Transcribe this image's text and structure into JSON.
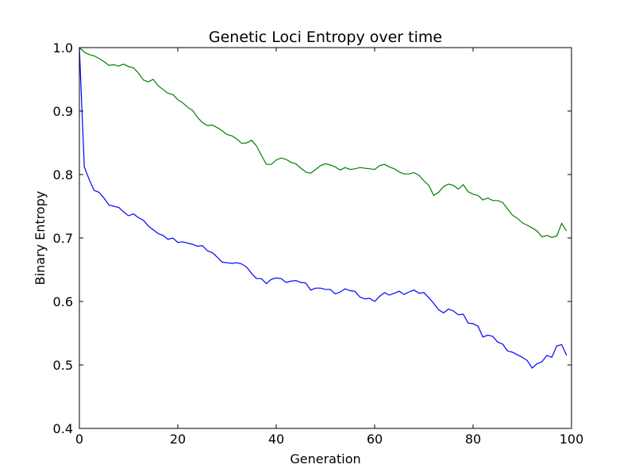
{
  "chart_data": {
    "type": "line",
    "title": "Genetic Loci Entropy over time",
    "xlabel": "Generation",
    "ylabel": "Binary Entropy",
    "xlim": [
      0,
      100
    ],
    "ylim": [
      0.4,
      1.0
    ],
    "xticks": [
      "0",
      "20",
      "40",
      "60",
      "80",
      "100"
    ],
    "yticks": [
      "0.4",
      "0.5",
      "0.6",
      "0.7",
      "0.8",
      "0.9",
      "1.0"
    ],
    "grid": false,
    "legend": "none",
    "series": [
      {
        "color": "#008000",
        "x": [
          0,
          1,
          2,
          3,
          4,
          5,
          6,
          7,
          8,
          9,
          10,
          11,
          12,
          13,
          14,
          15,
          16,
          17,
          18,
          19,
          20,
          21,
          22,
          23,
          24,
          25,
          26,
          27,
          28,
          29,
          30,
          31,
          32,
          33,
          34,
          35,
          36,
          37,
          38,
          39,
          40,
          41,
          42,
          43,
          44,
          45,
          46,
          47,
          48,
          49,
          50,
          51,
          52,
          53,
          54,
          55,
          56,
          57,
          58,
          59,
          60,
          61,
          62,
          63,
          64,
          65,
          66,
          67,
          68,
          69,
          70,
          71,
          72,
          73,
          74,
          75,
          76,
          77,
          78,
          79,
          80,
          81,
          82,
          83,
          84,
          85,
          86,
          87,
          88,
          89,
          90,
          91,
          92,
          93,
          94,
          95,
          96,
          97,
          98,
          99
        ],
        "values": [
          1.0,
          0.993,
          0.989,
          0.987,
          0.983,
          0.978,
          0.972,
          0.973,
          0.971,
          0.974,
          0.97,
          0.968,
          0.96,
          0.949,
          0.946,
          0.95,
          0.94,
          0.934,
          0.928,
          0.926,
          0.918,
          0.913,
          0.906,
          0.901,
          0.89,
          0.882,
          0.877,
          0.878,
          0.874,
          0.869,
          0.863,
          0.861,
          0.856,
          0.849,
          0.85,
          0.854,
          0.845,
          0.83,
          0.816,
          0.816,
          0.823,
          0.826,
          0.824,
          0.819,
          0.817,
          0.81,
          0.804,
          0.802,
          0.808,
          0.814,
          0.817,
          0.815,
          0.812,
          0.807,
          0.811,
          0.808,
          0.809,
          0.811,
          0.81,
          0.809,
          0.808,
          0.814,
          0.816,
          0.812,
          0.809,
          0.804,
          0.801,
          0.801,
          0.803,
          0.799,
          0.79,
          0.783,
          0.767,
          0.772,
          0.781,
          0.785,
          0.783,
          0.777,
          0.784,
          0.773,
          0.769,
          0.767,
          0.76,
          0.763,
          0.759,
          0.759,
          0.756,
          0.746,
          0.736,
          0.731,
          0.724,
          0.72,
          0.716,
          0.711,
          0.702,
          0.704,
          0.701,
          0.703,
          0.723,
          0.711
        ]
      },
      {
        "color": "#0000ff",
        "x": [
          0,
          1,
          2,
          3,
          4,
          5,
          6,
          7,
          8,
          9,
          10,
          11,
          12,
          13,
          14,
          15,
          16,
          17,
          18,
          19,
          20,
          21,
          22,
          23,
          24,
          25,
          26,
          27,
          28,
          29,
          30,
          31,
          32,
          33,
          34,
          35,
          36,
          37,
          38,
          39,
          40,
          41,
          42,
          43,
          44,
          45,
          46,
          47,
          48,
          49,
          50,
          51,
          52,
          53,
          54,
          55,
          56,
          57,
          58,
          59,
          60,
          61,
          62,
          63,
          64,
          65,
          66,
          67,
          68,
          69,
          70,
          71,
          72,
          73,
          74,
          75,
          76,
          77,
          78,
          79,
          80,
          81,
          82,
          83,
          84,
          85,
          86,
          87,
          88,
          89,
          90,
          91,
          92,
          93,
          94,
          95,
          96,
          97,
          98,
          99
        ],
        "values": [
          1.0,
          0.812,
          0.792,
          0.775,
          0.772,
          0.763,
          0.752,
          0.75,
          0.748,
          0.741,
          0.735,
          0.738,
          0.732,
          0.728,
          0.719,
          0.713,
          0.707,
          0.704,
          0.698,
          0.7,
          0.693,
          0.694,
          0.692,
          0.69,
          0.687,
          0.688,
          0.68,
          0.677,
          0.67,
          0.662,
          0.661,
          0.66,
          0.661,
          0.659,
          0.654,
          0.644,
          0.636,
          0.636,
          0.628,
          0.635,
          0.637,
          0.636,
          0.63,
          0.632,
          0.633,
          0.63,
          0.629,
          0.618,
          0.621,
          0.621,
          0.619,
          0.619,
          0.612,
          0.615,
          0.62,
          0.617,
          0.616,
          0.607,
          0.604,
          0.605,
          0.6,
          0.608,
          0.614,
          0.61,
          0.613,
          0.616,
          0.611,
          0.615,
          0.618,
          0.613,
          0.614,
          0.606,
          0.597,
          0.587,
          0.582,
          0.588,
          0.585,
          0.579,
          0.58,
          0.566,
          0.565,
          0.561,
          0.544,
          0.547,
          0.545,
          0.536,
          0.533,
          0.522,
          0.52,
          0.516,
          0.512,
          0.507,
          0.495,
          0.502,
          0.505,
          0.515,
          0.512,
          0.53,
          0.532,
          0.515
        ]
      }
    ]
  }
}
